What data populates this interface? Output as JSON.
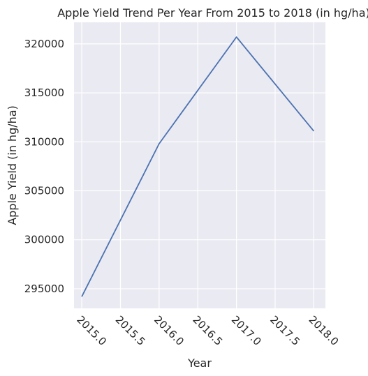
{
  "chart_data": {
    "type": "line",
    "title": "Apple Yield Trend Per Year From 2015 to 2018 (in hg/ha)",
    "xlabel": "Year",
    "ylabel": "Apple Yield (in hg/ha)",
    "x": [
      2015,
      2016,
      2017,
      2018
    ],
    "series": [
      {
        "values": [
          294200,
          309800,
          320700,
          311100
        ]
      }
    ],
    "xlim": [
      2014.9,
      2018.15
    ],
    "ylim": [
      293000,
      322200
    ],
    "xticks": [
      2015.0,
      2015.5,
      2016.0,
      2016.5,
      2017.0,
      2017.5,
      2018.0
    ],
    "xtick_labels": [
      "2015.0",
      "2015.5",
      "2016.0",
      "2016.5",
      "2017.0",
      "2017.5",
      "2018.0"
    ],
    "yticks": [
      295000,
      300000,
      305000,
      310000,
      315000,
      320000
    ],
    "ytick_labels": [
      "295000",
      "300000",
      "305000",
      "310000",
      "315000",
      "320000"
    ],
    "grid": true,
    "legend": "none",
    "colors": {
      "background": "#eaeaf2",
      "grid": "#ffffff",
      "line": "#4c72b0",
      "text": "#262626"
    }
  }
}
